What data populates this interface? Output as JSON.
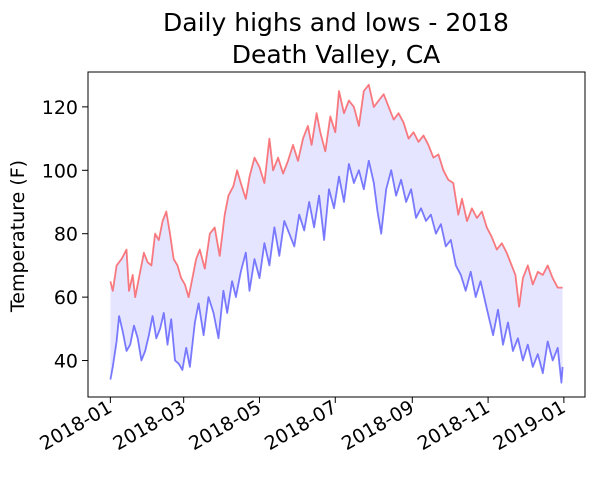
{
  "chart_data": {
    "type": "line",
    "title": "Daily highs and lows - 2018",
    "subtitle": "Death Valley, CA",
    "xlabel": "",
    "ylabel": "Temperature (F)",
    "xlim": [
      "2017-12-14",
      "2019-01-18"
    ],
    "ylim": [
      28.5,
      131
    ],
    "yticks": [
      40,
      60,
      80,
      100,
      120
    ],
    "xticks": [
      "2018-01",
      "2018-03",
      "2018-05",
      "2018-07",
      "2018-09",
      "2018-11",
      "2019-01"
    ],
    "grid": false,
    "legend": false,
    "fill_between": {
      "color": "#0000ff",
      "alpha": 0.1
    },
    "series": [
      {
        "color": "#ff0000",
        "alpha": 0.5,
        "points": [
          [
            "2018-01-01",
            65
          ],
          [
            "2018-01-03",
            62
          ],
          [
            "2018-01-06",
            70
          ],
          [
            "2018-01-10",
            72
          ],
          [
            "2018-01-14",
            75
          ],
          [
            "2018-01-16",
            62
          ],
          [
            "2018-01-19",
            67
          ],
          [
            "2018-01-21",
            60
          ],
          [
            "2018-01-24",
            66
          ],
          [
            "2018-01-28",
            74
          ],
          [
            "2018-01-31",
            71
          ],
          [
            "2018-02-03",
            70
          ],
          [
            "2018-02-06",
            80
          ],
          [
            "2018-02-09",
            78
          ],
          [
            "2018-02-12",
            84
          ],
          [
            "2018-02-15",
            87
          ],
          [
            "2018-02-18",
            80
          ],
          [
            "2018-02-21",
            72
          ],
          [
            "2018-02-24",
            70
          ],
          [
            "2018-02-27",
            66
          ],
          [
            "2018-03-02",
            64
          ],
          [
            "2018-03-05",
            60
          ],
          [
            "2018-03-08",
            66
          ],
          [
            "2018-03-11",
            72
          ],
          [
            "2018-03-14",
            75
          ],
          [
            "2018-03-18",
            69
          ],
          [
            "2018-03-22",
            80
          ],
          [
            "2018-03-26",
            82
          ],
          [
            "2018-03-30",
            73
          ],
          [
            "2018-04-03",
            86
          ],
          [
            "2018-04-06",
            92
          ],
          [
            "2018-04-10",
            95
          ],
          [
            "2018-04-13",
            100
          ],
          [
            "2018-04-16",
            96
          ],
          [
            "2018-04-20",
            91
          ],
          [
            "2018-04-23",
            98
          ],
          [
            "2018-04-27",
            104
          ],
          [
            "2018-05-01",
            101
          ],
          [
            "2018-05-05",
            96
          ],
          [
            "2018-05-09",
            110
          ],
          [
            "2018-05-12",
            100
          ],
          [
            "2018-05-16",
            104
          ],
          [
            "2018-05-20",
            99
          ],
          [
            "2018-05-24",
            103
          ],
          [
            "2018-05-28",
            108
          ],
          [
            "2018-06-01",
            103
          ],
          [
            "2018-06-05",
            110
          ],
          [
            "2018-06-09",
            114
          ],
          [
            "2018-06-12",
            108
          ],
          [
            "2018-06-16",
            118
          ],
          [
            "2018-06-19",
            112
          ],
          [
            "2018-06-23",
            106
          ],
          [
            "2018-06-27",
            117
          ],
          [
            "2018-07-01",
            112
          ],
          [
            "2018-07-04",
            125
          ],
          [
            "2018-07-08",
            118
          ],
          [
            "2018-07-12",
            122
          ],
          [
            "2018-07-16",
            120
          ],
          [
            "2018-07-20",
            114
          ],
          [
            "2018-07-24",
            125
          ],
          [
            "2018-07-28",
            127
          ],
          [
            "2018-08-01",
            120
          ],
          [
            "2018-08-05",
            122
          ],
          [
            "2018-08-09",
            124
          ],
          [
            "2018-08-13",
            120
          ],
          [
            "2018-08-17",
            116
          ],
          [
            "2018-08-21",
            118
          ],
          [
            "2018-08-25",
            115
          ],
          [
            "2018-08-29",
            110
          ],
          [
            "2018-09-02",
            112
          ],
          [
            "2018-09-06",
            109
          ],
          [
            "2018-09-10",
            111
          ],
          [
            "2018-09-14",
            108
          ],
          [
            "2018-09-18",
            104
          ],
          [
            "2018-09-22",
            105
          ],
          [
            "2018-09-26",
            100
          ],
          [
            "2018-09-30",
            97
          ],
          [
            "2018-10-04",
            96
          ],
          [
            "2018-10-08",
            86
          ],
          [
            "2018-10-11",
            91
          ],
          [
            "2018-10-15",
            84
          ],
          [
            "2018-10-19",
            88
          ],
          [
            "2018-10-23",
            85
          ],
          [
            "2018-10-27",
            87
          ],
          [
            "2018-10-31",
            82
          ],
          [
            "2018-11-04",
            79
          ],
          [
            "2018-11-08",
            75
          ],
          [
            "2018-11-12",
            77
          ],
          [
            "2018-11-16",
            74
          ],
          [
            "2018-11-20",
            70
          ],
          [
            "2018-11-23",
            67
          ],
          [
            "2018-11-26",
            57
          ],
          [
            "2018-11-29",
            66
          ],
          [
            "2018-12-03",
            70
          ],
          [
            "2018-12-07",
            64
          ],
          [
            "2018-12-11",
            68
          ],
          [
            "2018-12-15",
            67
          ],
          [
            "2018-12-19",
            70
          ],
          [
            "2018-12-23",
            66
          ],
          [
            "2018-12-27",
            63
          ],
          [
            "2018-12-31",
            63
          ]
        ]
      },
      {
        "color": "#0000ff",
        "alpha": 0.5,
        "points": [
          [
            "2018-01-01",
            34
          ],
          [
            "2018-01-03",
            38
          ],
          [
            "2018-01-06",
            46
          ],
          [
            "2018-01-08",
            54
          ],
          [
            "2018-01-11",
            49
          ],
          [
            "2018-01-14",
            43
          ],
          [
            "2018-01-17",
            45
          ],
          [
            "2018-01-20",
            51
          ],
          [
            "2018-01-23",
            47
          ],
          [
            "2018-01-26",
            40
          ],
          [
            "2018-01-29",
            43
          ],
          [
            "2018-02-01",
            48
          ],
          [
            "2018-02-04",
            54
          ],
          [
            "2018-02-07",
            47
          ],
          [
            "2018-02-10",
            50
          ],
          [
            "2018-02-13",
            55
          ],
          [
            "2018-02-16",
            45
          ],
          [
            "2018-02-19",
            53
          ],
          [
            "2018-02-22",
            40
          ],
          [
            "2018-02-25",
            39
          ],
          [
            "2018-02-28",
            37
          ],
          [
            "2018-03-03",
            44
          ],
          [
            "2018-03-06",
            38
          ],
          [
            "2018-03-10",
            52
          ],
          [
            "2018-03-13",
            58
          ],
          [
            "2018-03-17",
            48
          ],
          [
            "2018-03-21",
            60
          ],
          [
            "2018-03-25",
            55
          ],
          [
            "2018-03-29",
            47
          ],
          [
            "2018-04-02",
            62
          ],
          [
            "2018-04-05",
            55
          ],
          [
            "2018-04-09",
            65
          ],
          [
            "2018-04-12",
            60
          ],
          [
            "2018-04-16",
            68
          ],
          [
            "2018-04-20",
            74
          ],
          [
            "2018-04-23",
            62
          ],
          [
            "2018-04-27",
            72
          ],
          [
            "2018-05-01",
            66
          ],
          [
            "2018-05-05",
            77
          ],
          [
            "2018-05-09",
            70
          ],
          [
            "2018-05-13",
            82
          ],
          [
            "2018-05-17",
            73
          ],
          [
            "2018-05-21",
            84
          ],
          [
            "2018-05-25",
            80
          ],
          [
            "2018-05-29",
            76
          ],
          [
            "2018-06-02",
            86
          ],
          [
            "2018-06-06",
            81
          ],
          [
            "2018-06-10",
            90
          ],
          [
            "2018-06-14",
            82
          ],
          [
            "2018-06-18",
            92
          ],
          [
            "2018-06-22",
            78
          ],
          [
            "2018-06-26",
            94
          ],
          [
            "2018-06-30",
            88
          ],
          [
            "2018-07-04",
            98
          ],
          [
            "2018-07-08",
            90
          ],
          [
            "2018-07-12",
            102
          ],
          [
            "2018-07-16",
            96
          ],
          [
            "2018-07-20",
            100
          ],
          [
            "2018-07-24",
            94
          ],
          [
            "2018-07-28",
            103
          ],
          [
            "2018-08-01",
            96
          ],
          [
            "2018-08-04",
            87
          ],
          [
            "2018-08-07",
            80
          ],
          [
            "2018-08-11",
            94
          ],
          [
            "2018-08-15",
            100
          ],
          [
            "2018-08-19",
            92
          ],
          [
            "2018-08-23",
            97
          ],
          [
            "2018-08-27",
            90
          ],
          [
            "2018-08-31",
            94
          ],
          [
            "2018-09-04",
            85
          ],
          [
            "2018-09-08",
            88
          ],
          [
            "2018-09-12",
            84
          ],
          [
            "2018-09-16",
            86
          ],
          [
            "2018-09-20",
            80
          ],
          [
            "2018-09-24",
            83
          ],
          [
            "2018-09-28",
            76
          ],
          [
            "2018-10-02",
            78
          ],
          [
            "2018-10-06",
            70
          ],
          [
            "2018-10-10",
            67
          ],
          [
            "2018-10-14",
            62
          ],
          [
            "2018-10-18",
            68
          ],
          [
            "2018-10-22",
            60
          ],
          [
            "2018-10-26",
            65
          ],
          [
            "2018-10-30",
            58
          ],
          [
            "2018-11-02",
            53
          ],
          [
            "2018-11-05",
            48
          ],
          [
            "2018-11-09",
            56
          ],
          [
            "2018-11-13",
            45
          ],
          [
            "2018-11-17",
            52
          ],
          [
            "2018-11-21",
            43
          ],
          [
            "2018-11-25",
            47
          ],
          [
            "2018-11-29",
            40
          ],
          [
            "2018-12-03",
            45
          ],
          [
            "2018-12-07",
            38
          ],
          [
            "2018-12-11",
            42
          ],
          [
            "2018-12-15",
            36
          ],
          [
            "2018-12-19",
            46
          ],
          [
            "2018-12-23",
            40
          ],
          [
            "2018-12-27",
            44
          ],
          [
            "2018-12-30",
            33
          ],
          [
            "2018-12-31",
            38
          ]
        ]
      }
    ]
  }
}
